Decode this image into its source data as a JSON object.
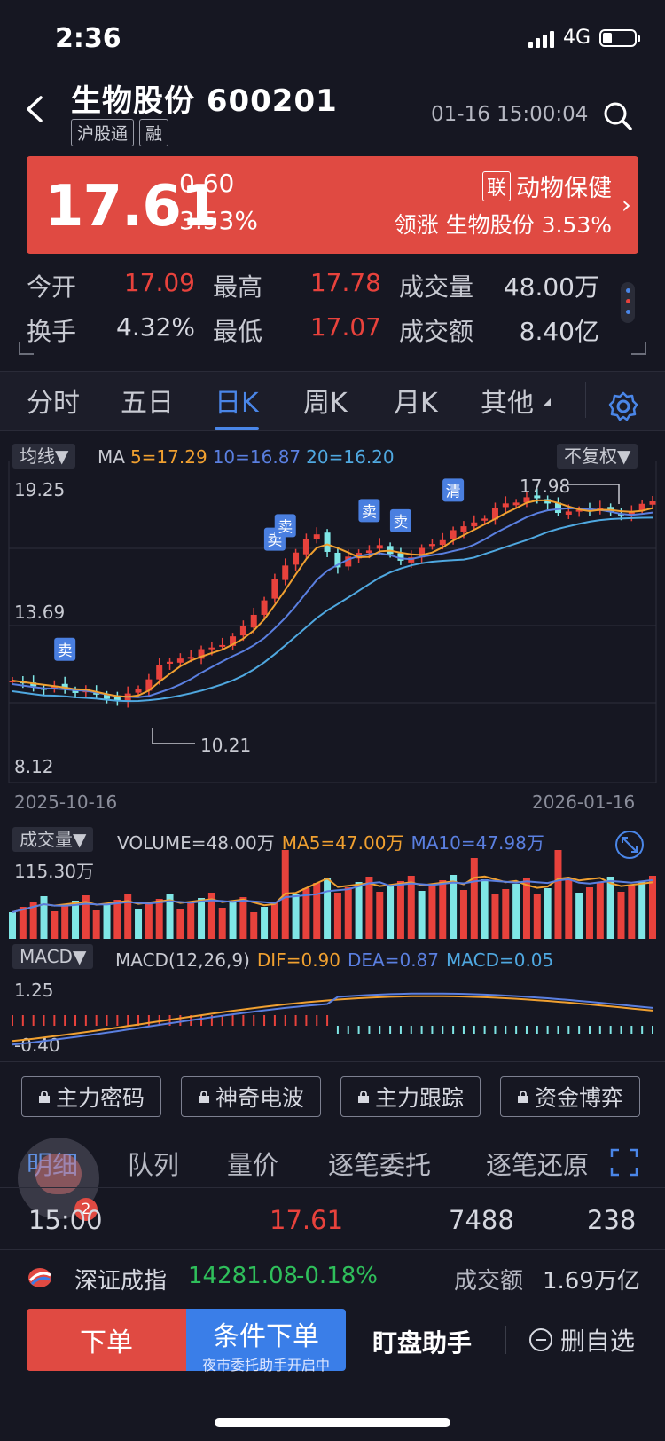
{
  "status": {
    "time": "2:36",
    "network": "4G"
  },
  "header": {
    "title": "生物股份 600201",
    "tags": [
      "沪股通",
      "融"
    ],
    "datetime": "01-16 15:00:04"
  },
  "quote": {
    "price": "17.61",
    "change": "0.60",
    "change_pct": "3.53%",
    "sector_tag": "联",
    "sector": "动物保健",
    "lead_label": "领涨 生物股份 3.53%"
  },
  "stats": [
    {
      "label": "今开",
      "value": "17.09",
      "color": "#e8423c"
    },
    {
      "label": "最高",
      "value": "17.78",
      "color": "#e8423c"
    },
    {
      "label": "成交量",
      "value": "48.00万",
      "color": "#d6d8e0"
    },
    {
      "label": "换手",
      "value": "4.32%",
      "color": "#d6d8e0"
    },
    {
      "label": "最低",
      "value": "17.07",
      "color": "#e8423c"
    },
    {
      "label": "成交额",
      "value": "8.40亿",
      "color": "#d6d8e0"
    }
  ],
  "period_tabs": [
    "分时",
    "五日",
    "日K",
    "周K",
    "月K",
    "其他"
  ],
  "active_period": "日K",
  "kline": {
    "ma_toggle": "均线▼",
    "ma_label": "MA",
    "ma5": "5=17.29",
    "ma10": "10=16.87",
    "ma20": "20=16.20",
    "adjust": "不复权▼",
    "y_top": "19.25",
    "y_mid": "13.69",
    "y_bottom": "8.12",
    "high_mark": "17.98",
    "low_mark": "10.21",
    "date_start": "2025-10-16",
    "date_end": "2026-01-16",
    "signals": [
      "卖",
      "卖",
      "卖",
      "卖",
      "卖",
      "清"
    ]
  },
  "volume": {
    "toggle": "成交量▼",
    "label": "VOLUME=48.00万",
    "ma5": "MA5=47.00万",
    "ma10": "MA10=47.98万",
    "max": "115.30万"
  },
  "macd": {
    "toggle": "MACD▼",
    "label": "MACD(12,26,9)",
    "dif": "DIF=0.90",
    "dea": "DEA=0.87",
    "macd": "MACD=0.05",
    "y_top": "1.25",
    "y_bottom": "-0.40"
  },
  "lock_buttons": [
    "主力密码",
    "神奇电波",
    "主力跟踪",
    "资金博弈"
  ],
  "detail_tabs": [
    "明细",
    "队列",
    "量价",
    "逐笔委托",
    "逐笔还原"
  ],
  "detail_row": {
    "time": "15:00",
    "price": "17.61",
    "volume": "7488",
    "count": "238"
  },
  "badge": "2",
  "index": {
    "name": "深证成指",
    "value": "14281.08",
    "change": "-0.18%",
    "turnover_label": "成交额",
    "turnover": "1.69万亿"
  },
  "bottom": {
    "order": "下单",
    "cond_order": "条件下单",
    "cond_sub": "夜市委托助手开启中",
    "assistant": "盯盘助手",
    "remove_fav": "删自选"
  },
  "colors": {
    "up": "#e8423c",
    "down": "#7fe6e6",
    "accent": "#4a86e8",
    "ma5": "#f0a030",
    "ma10": "#5a7fe0",
    "ma20": "#4fa8e0"
  }
}
